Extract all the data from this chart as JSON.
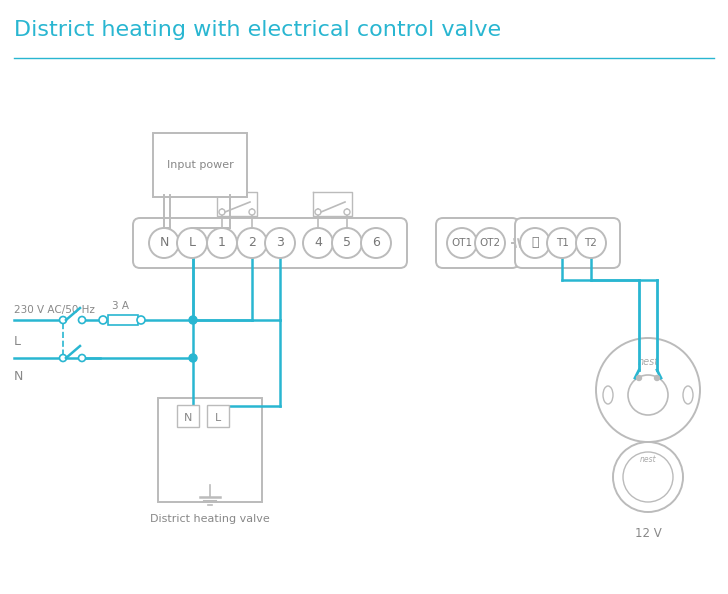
{
  "title": "District heating with electrical control valve",
  "title_color": "#29b6d1",
  "title_fontsize": 16,
  "bg_color": "#ffffff",
  "wire_color": "#29b6d1",
  "gray": "#999999",
  "light_gray": "#bbbbbb",
  "input_power_label": "Input power",
  "left_label": "230 V AC/50 Hz",
  "L_label": "L",
  "N_label": "N",
  "fuse_label": "3 A",
  "valve_label": "District heating valve",
  "nest_label": "12 V",
  "nest_text": "nest",
  "terminal_labels": [
    "N",
    "L",
    "1",
    "2",
    "3",
    "4",
    "5",
    "6"
  ],
  "ot_labels": [
    "OT1",
    "OT2"
  ],
  "t_labels": [
    "T1",
    "T2"
  ],
  "ground_sym": "⏚"
}
